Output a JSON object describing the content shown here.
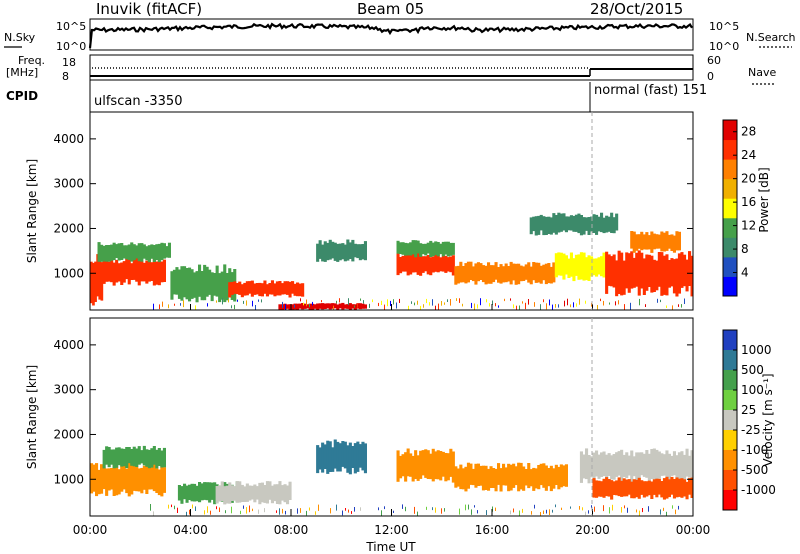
{
  "header": {
    "station": "Inuvik (fitACF)",
    "beam": "Beam 05",
    "date": "28/Oct/2015"
  },
  "top_panels": {
    "nsky_label": "N.Sky",
    "nsky_ticks": [
      "10^5",
      "10^0"
    ],
    "nsearch_label": "N.Search",
    "nsearch_ticks": [
      "10^5",
      "10^0"
    ],
    "freq_label": [
      "Freq.",
      "[MHz]"
    ],
    "freq_ticks": [
      "18",
      "8"
    ],
    "nave_label": "Nave",
    "nave_ticks": [
      "60",
      "0"
    ],
    "cpid_label": "CPID",
    "cpid_segments": [
      {
        "label": "ulfscan -3350",
        "start_hour": 0
      },
      {
        "label": "normal (fast) 151",
        "start_hour": 20
      }
    ]
  },
  "colors": {
    "power": [
      "#0000ff",
      "#2050c0",
      "#3c8a6a",
      "#46a04a",
      "#ffff00",
      "#f0b000",
      "#ff8000",
      "#ff3000",
      "#e00000"
    ],
    "velocity": [
      "#2040c0",
      "#2f7a96",
      "#44a04c",
      "#6fd040",
      "#c8c8c0",
      "#ffd000",
      "#ff9000",
      "#ff5000",
      "#ff0000"
    ]
  },
  "chart_data": [
    {
      "type": "heatmap",
      "title": "",
      "ylabel": "Slant Range [km]",
      "xlabel": "",
      "x_range_hours": [
        0,
        24
      ],
      "ylim_km": [
        180,
        4600
      ],
      "yticks": [
        1000,
        2000,
        3000,
        4000
      ],
      "colorbar": {
        "label": "Power [dB]",
        "ticks": [
          4,
          8,
          12,
          16,
          20,
          24,
          28
        ],
        "range": [
          0,
          30
        ]
      },
      "features": [
        {
          "t0": 0.0,
          "t1": 0.5,
          "r0": 400,
          "r1": 1300,
          "value": 26
        },
        {
          "t0": 0.4,
          "t1": 3.0,
          "r0": 800,
          "r1": 1300,
          "value": 24
        },
        {
          "t0": 0.3,
          "t1": 3.2,
          "r0": 1300,
          "r1": 1650,
          "value": 10
        },
        {
          "t0": 3.2,
          "t1": 5.8,
          "r0": 450,
          "r1": 1100,
          "value": 12
        },
        {
          "t0": 5.5,
          "t1": 8.5,
          "r0": 500,
          "r1": 800,
          "value": 26
        },
        {
          "t0": 7.5,
          "t1": 11.0,
          "r0": 200,
          "r1": 320,
          "value": 28
        },
        {
          "t0": 9.0,
          "t1": 11.0,
          "r0": 1300,
          "r1": 1700,
          "value": 8
        },
        {
          "t0": 12.2,
          "t1": 14.5,
          "r0": 1000,
          "r1": 1400,
          "value": 26
        },
        {
          "t0": 12.2,
          "t1": 14.5,
          "r0": 1400,
          "r1": 1700,
          "value": 12
        },
        {
          "t0": 14.5,
          "t1": 18.5,
          "r0": 800,
          "r1": 1200,
          "value": 22
        },
        {
          "t0": 18.5,
          "t1": 20.5,
          "r0": 900,
          "r1": 1400,
          "value": 14
        },
        {
          "t0": 20.5,
          "t1": 24.0,
          "r0": 600,
          "r1": 1400,
          "value": 26
        },
        {
          "t0": 21.5,
          "t1": 23.5,
          "r0": 1500,
          "r1": 1900,
          "value": 22
        },
        {
          "t0": 17.5,
          "t1": 21.0,
          "r0": 1900,
          "r1": 2300,
          "value": 8
        }
      ]
    },
    {
      "type": "heatmap",
      "title": "",
      "ylabel": "Slant Range [km]",
      "xlabel": "Time UT",
      "x_range_hours": [
        0,
        24
      ],
      "ylim_km": [
        180,
        4600
      ],
      "yticks": [
        1000,
        2000,
        3000,
        4000
      ],
      "xticks": [
        "00:00",
        "04:00",
        "08:00",
        "12:00",
        "16:00",
        "20:00",
        "00:00"
      ],
      "colorbar": {
        "label": "Velocity [m s⁻¹]",
        "ticks": [
          1000,
          500,
          100,
          25,
          -25,
          -100,
          -500,
          -1000
        ]
      },
      "features": [
        {
          "t0": 0.0,
          "t1": 3.0,
          "r0": 700,
          "r1": 1300,
          "value": -200
        },
        {
          "t0": 0.5,
          "t1": 3.0,
          "r0": 1300,
          "r1": 1700,
          "value": 150
        },
        {
          "t0": 3.5,
          "t1": 6.0,
          "r0": 500,
          "r1": 900,
          "value": 200
        },
        {
          "t0": 5.0,
          "t1": 8.0,
          "r0": 500,
          "r1": 900,
          "value": 0
        },
        {
          "t0": 9.0,
          "t1": 11.0,
          "r0": 1200,
          "r1": 1800,
          "value": 600
        },
        {
          "t0": 12.2,
          "t1": 14.5,
          "r0": 1000,
          "r1": 1600,
          "value": -300
        },
        {
          "t0": 14.5,
          "t1": 19.0,
          "r0": 800,
          "r1": 1300,
          "value": -400
        },
        {
          "t0": 19.5,
          "t1": 24.0,
          "r0": 1000,
          "r1": 1600,
          "value": 0
        },
        {
          "t0": 20.0,
          "t1": 24.0,
          "r0": 600,
          "r1": 1000,
          "value": -600
        }
      ]
    }
  ]
}
